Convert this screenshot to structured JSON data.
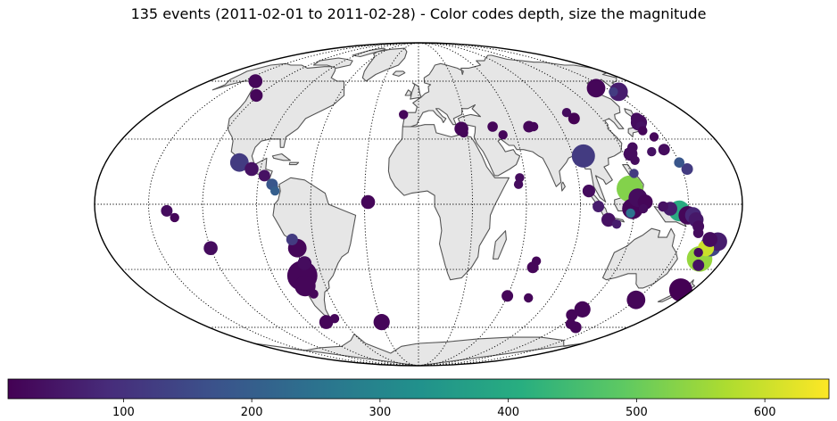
{
  "title": "135 events (2011-02-01 to 2011-02-28) - Color codes depth, size the magnitude",
  "colorbar": {
    "min": 10,
    "max": 650,
    "ticks": [
      100,
      200,
      300,
      400,
      500,
      600
    ],
    "tick_labels": [
      "100",
      "200",
      "300",
      "400",
      "500",
      "600"
    ]
  },
  "map_style": {
    "projection": "mollweide",
    "land_color": "#e6e6e6",
    "coast_color": "#555555",
    "grid_style": "dotted"
  },
  "chart_data": {
    "type": "scatter",
    "x_meaning": "longitude (degrees)",
    "y_meaning": "latitude (degrees)",
    "color_meaning": "depth (km)",
    "size_meaning": "magnitude",
    "points": [
      {
        "lon": 142,
        "lat": 38,
        "depth": 30,
        "mag": 5.6
      },
      {
        "lon": 143,
        "lat": 40,
        "depth": 30,
        "mag": 5.2
      },
      {
        "lon": 141,
        "lat": 36,
        "depth": 40,
        "mag": 5.1
      },
      {
        "lon": 144,
        "lat": 31,
        "depth": 20,
        "mag": 5.0
      },
      {
        "lon": 140,
        "lat": 34,
        "depth": 20,
        "mag": 5.0
      },
      {
        "lon": 151,
        "lat": 54,
        "depth": 120,
        "mag": 5.0
      },
      {
        "lon": 155,
        "lat": 54,
        "depth": 60,
        "mag": 5.8
      },
      {
        "lon": 142,
        "lat": 56,
        "depth": 20,
        "mag": 5.8
      },
      {
        "lon": 145,
        "lat": 25,
        "depth": 30,
        "mag": 5.2
      },
      {
        "lon": 137,
        "lat": 24,
        "depth": 40,
        "mag": 5.0
      },
      {
        "lon": 150,
        "lat": 19,
        "depth": 180,
        "mag": 5.1
      },
      {
        "lon": 153,
        "lat": 16,
        "depth": 120,
        "mag": 5.2
      },
      {
        "lon": 127,
        "lat": 26,
        "depth": 30,
        "mag": 5.1
      },
      {
        "lon": 124,
        "lat": 23,
        "depth": 30,
        "mag": 5.4
      },
      {
        "lon": 125,
        "lat": 20,
        "depth": 30,
        "mag": 5.0
      },
      {
        "lon": 102,
        "lat": 40,
        "depth": 10,
        "mag": 5.2
      },
      {
        "lon": 100,
        "lat": 43,
        "depth": 30,
        "mag": 5.0
      },
      {
        "lon": 96,
        "lat": 22,
        "depth": 120,
        "mag": 6.2
      },
      {
        "lon": 122,
        "lat": 14,
        "depth": 120,
        "mag": 5.0
      },
      {
        "lon": 118,
        "lat": 7,
        "depth": 530,
        "mag": 6.5
      },
      {
        "lon": 122,
        "lat": 3,
        "depth": 30,
        "mag": 5.8
      },
      {
        "lon": 126,
        "lat": 1,
        "depth": 20,
        "mag": 5.5
      },
      {
        "lon": 119,
        "lat": -2,
        "depth": 20,
        "mag": 6.0
      },
      {
        "lon": 125,
        "lat": -2,
        "depth": 30,
        "mag": 5.0
      },
      {
        "lon": 118,
        "lat": -4,
        "depth": 250,
        "mag": 5.0
      },
      {
        "lon": 136,
        "lat": -1,
        "depth": 40,
        "mag": 5.1
      },
      {
        "lon": 140,
        "lat": -2,
        "depth": 60,
        "mag": 5.4
      },
      {
        "lon": 145,
        "lat": -3,
        "depth": 400,
        "mag": 6.0
      },
      {
        "lon": 150,
        "lat": -5,
        "depth": 20,
        "mag": 5.8
      },
      {
        "lon": 153,
        "lat": -5,
        "depth": 80,
        "mag": 5.6
      },
      {
        "lon": 155,
        "lat": -7,
        "depth": 50,
        "mag": 5.5
      },
      {
        "lon": 157,
        "lat": -10,
        "depth": 30,
        "mag": 5.2
      },
      {
        "lon": 158,
        "lat": -13,
        "depth": 30,
        "mag": 5.1
      },
      {
        "lon": 166,
        "lat": -16,
        "depth": 30,
        "mag": 5.5
      },
      {
        "lon": 171,
        "lat": -17,
        "depth": 60,
        "mag": 5.8
      },
      {
        "lon": 168,
        "lat": -19,
        "depth": 140,
        "mag": 6.0
      },
      {
        "lon": 166,
        "lat": -20,
        "depth": 600,
        "mag": 5.6
      },
      {
        "lon": 163,
        "lat": -22,
        "depth": 30,
        "mag": 5.0
      },
      {
        "lon": 166,
        "lat": -25,
        "depth": 550,
        "mag": 6.4
      },
      {
        "lon": 168,
        "lat": -28,
        "depth": 40,
        "mag": 5.2
      },
      {
        "lon": 172,
        "lat": -40,
        "depth": 10,
        "mag": 6.2
      },
      {
        "lon": 95,
        "lat": 6,
        "depth": 30,
        "mag": 5.3
      },
      {
        "lon": 100,
        "lat": -1,
        "depth": 60,
        "mag": 5.2
      },
      {
        "lon": 106,
        "lat": -7,
        "depth": 40,
        "mag": 5.4
      },
      {
        "lon": 111,
        "lat": -9,
        "depth": 60,
        "mag": 5.0
      },
      {
        "lon": 70,
        "lat": 36,
        "depth": 20,
        "mag": 5.2
      },
      {
        "lon": 73,
        "lat": 36,
        "depth": 20,
        "mag": 5.0
      },
      {
        "lon": 57,
        "lat": 12,
        "depth": 30,
        "mag": 5.0
      },
      {
        "lon": 56,
        "lat": 9,
        "depth": 30,
        "mag": 5.0
      },
      {
        "lon": 52,
        "lat": 32,
        "depth": 20,
        "mag": 5.0
      },
      {
        "lon": 47,
        "lat": 36,
        "depth": 20,
        "mag": 5.1
      },
      {
        "lon": 27,
        "lat": 35,
        "depth": 20,
        "mag": 5.4
      },
      {
        "lon": 28,
        "lat": 33,
        "depth": 20,
        "mag": 5.0
      },
      {
        "lon": 69,
        "lat": -29,
        "depth": 20,
        "mag": 5.2
      },
      {
        "lon": 70,
        "lat": -26,
        "depth": 20,
        "mag": 5.0
      },
      {
        "lon": -10,
        "lat": 42,
        "depth": 20,
        "mag": 5.0
      },
      {
        "lon": -28,
        "lat": 1,
        "depth": 20,
        "mag": 5.4
      },
      {
        "lon": -122,
        "lat": 52,
        "depth": 20,
        "mag": 5.3
      },
      {
        "lon": -140,
        "lat": 60,
        "depth": 20,
        "mag": 5.4
      },
      {
        "lon": -95,
        "lat": 16,
        "depth": 40,
        "mag": 5.4
      },
      {
        "lon": -103,
        "lat": 19,
        "depth": 120,
        "mag": 5.8
      },
      {
        "lon": -87,
        "lat": 13,
        "depth": 40,
        "mag": 5.2
      },
      {
        "lon": -82,
        "lat": 9,
        "depth": 180,
        "mag": 5.2
      },
      {
        "lon": -80,
        "lat": 6,
        "depth": 200,
        "mag": 5.0
      },
      {
        "lon": -136,
        "lat": -6,
        "depth": 20,
        "mag": 5.0
      },
      {
        "lon": -140,
        "lat": -3,
        "depth": 30,
        "mag": 5.2
      },
      {
        "lon": -120,
        "lat": -20,
        "depth": 30,
        "mag": 5.4
      },
      {
        "lon": -72,
        "lat": -16,
        "depth": 120,
        "mag": 5.2
      },
      {
        "lon": -70,
        "lat": -20,
        "depth": 20,
        "mag": 5.8
      },
      {
        "lon": -68,
        "lat": -27,
        "depth": 30,
        "mag": 5.4
      },
      {
        "lon": -72,
        "lat": -33,
        "depth": 20,
        "mag": 6.8
      },
      {
        "lon": -73,
        "lat": -38,
        "depth": 20,
        "mag": 6.0
      },
      {
        "lon": -70,
        "lat": -42,
        "depth": 20,
        "mag": 5.0
      },
      {
        "lon": -66,
        "lat": -55,
        "depth": 20,
        "mag": 5.0
      },
      {
        "lon": -75,
        "lat": -57,
        "depth": 20,
        "mag": 5.4
      },
      {
        "lon": -30,
        "lat": -57,
        "depth": 20,
        "mag": 5.6
      },
      {
        "lon": 60,
        "lat": -43,
        "depth": 20,
        "mag": 5.2
      },
      {
        "lon": 75,
        "lat": -44,
        "depth": 20,
        "mag": 5.0
      },
      {
        "lon": 120,
        "lat": -50,
        "depth": 20,
        "mag": 5.6
      },
      {
        "lon": 117,
        "lat": -53,
        "depth": 20,
        "mag": 5.2
      },
      {
        "lon": 135,
        "lat": -60,
        "depth": 20,
        "mag": 5.2
      },
      {
        "lon": 150,
        "lat": -45,
        "depth": 20,
        "mag": 5.8
      },
      {
        "lon": 126,
        "lat": -58,
        "depth": 20,
        "mag": 5.1
      }
    ]
  }
}
